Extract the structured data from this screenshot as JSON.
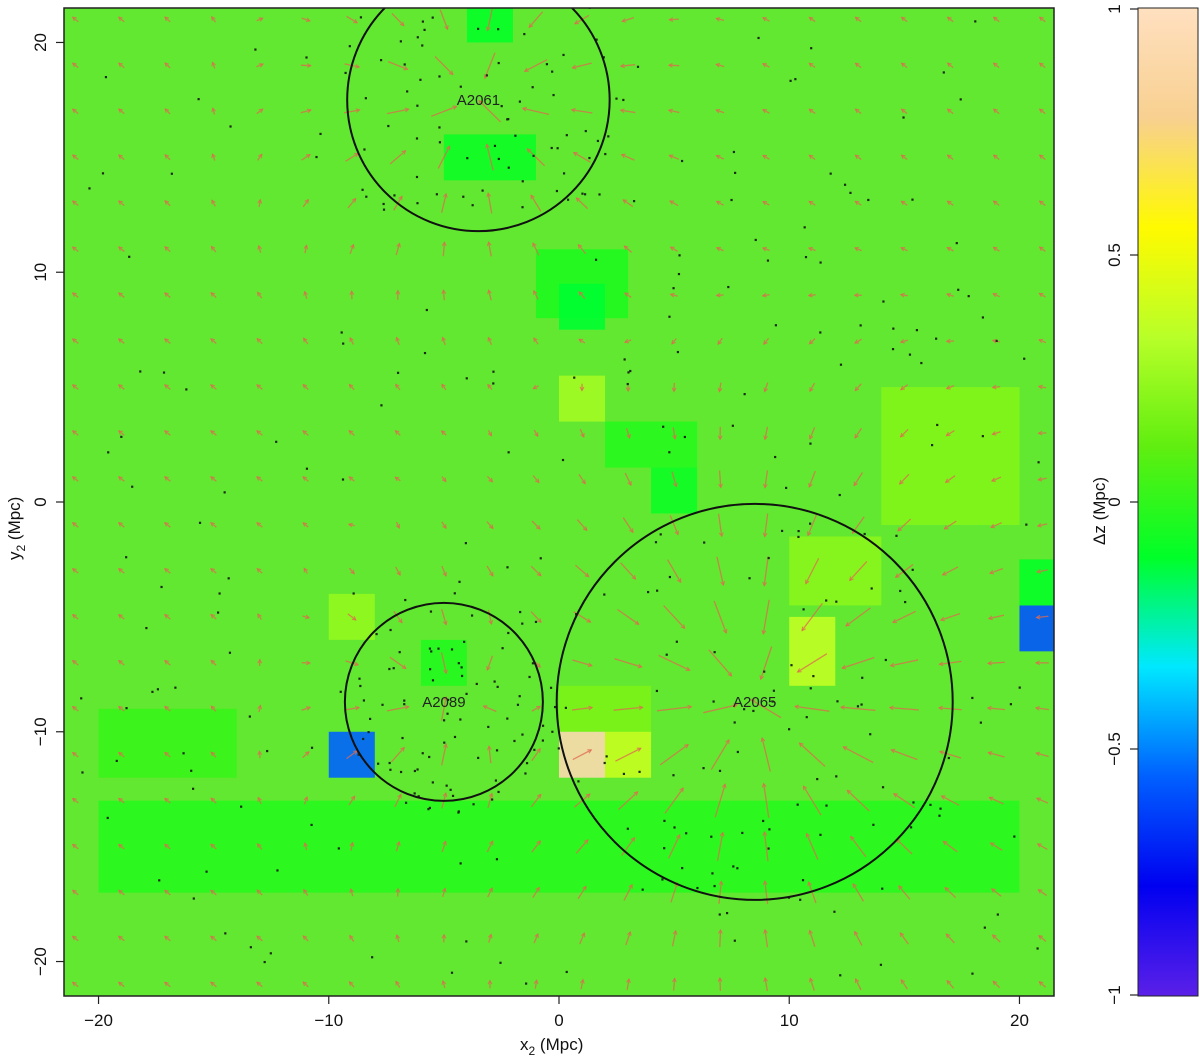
{
  "chart_data": {
    "type": "heatmap",
    "xlabel_main": "x",
    "xlabel_sub": "2",
    "xlabel_unit": " (Mpc)",
    "ylabel_main": "y",
    "ylabel_sub": "2",
    "ylabel_unit": " (Mpc)",
    "xlim": [
      -21.5,
      21.5
    ],
    "ylim": [
      -21.5,
      21.5
    ],
    "x_ticks": [
      -20,
      -10,
      0,
      10,
      20
    ],
    "x_tick_labels": [
      "−20",
      "−10",
      "0",
      "10",
      "20"
    ],
    "y_ticks": [
      -20,
      -10,
      0,
      10,
      20
    ],
    "y_tick_labels": [
      "−20",
      "−10",
      "0",
      "10",
      "20"
    ],
    "colorbar": {
      "label": "Δz (Mpc)",
      "range": [
        -1,
        1
      ],
      "ticks": [
        -1,
        -0.5,
        0,
        0.5,
        1
      ],
      "tick_labels": [
        "−1",
        "−0.5",
        "0",
        "0.5",
        "1"
      ],
      "colors": [
        "#5b20e8",
        "#0000f0",
        "#0060ff",
        "#00e8ff",
        "#00ff28",
        "#60ee10",
        "#b8ff28",
        "#fffa00",
        "#f8d090",
        "#ffe0c0"
      ]
    },
    "background_color": "#62e830",
    "cell_size_mpc": 2,
    "patches": [
      {
        "x": -4,
        "y": 20,
        "w": 2,
        "h": 2,
        "dz": -0.1
      },
      {
        "x": -5,
        "y": 14,
        "w": 4,
        "h": 2,
        "dz": -0.08
      },
      {
        "x": -1,
        "y": 8,
        "w": 4,
        "h": 3,
        "dz": -0.04
      },
      {
        "x": 0,
        "y": 7.5,
        "w": 2,
        "h": 2,
        "dz": -0.12
      },
      {
        "x": 0,
        "y": 3.5,
        "w": 2,
        "h": 2,
        "dz": 0.28
      },
      {
        "x": 2,
        "y": 1.5,
        "w": 4,
        "h": 2,
        "dz": -0.02
      },
      {
        "x": 4,
        "y": -0.5,
        "w": 2,
        "h": 2,
        "dz": -0.08
      },
      {
        "x": 10,
        "y": -4.5,
        "w": 4,
        "h": 3,
        "dz": 0.22
      },
      {
        "x": 10,
        "y": -8,
        "w": 2,
        "h": 3,
        "dz": 0.36
      },
      {
        "x": 20,
        "y": -6.5,
        "w": 2,
        "h": 2,
        "dz": -0.58
      },
      {
        "x": 20,
        "y": -4.5,
        "w": 2,
        "h": 2,
        "dz": -0.1
      },
      {
        "x": -10,
        "y": -6,
        "w": 2,
        "h": 2,
        "dz": 0.24
      },
      {
        "x": -10,
        "y": -12,
        "w": 2,
        "h": 2,
        "dz": -0.55
      },
      {
        "x": -6,
        "y": -8,
        "w": 2,
        "h": 2,
        "dz": -0.03
      },
      {
        "x": 0,
        "y": -12,
        "w": 2,
        "h": 2,
        "dz": 0.92
      },
      {
        "x": 2,
        "y": -12,
        "w": 2,
        "h": 2,
        "dz": 0.38
      },
      {
        "x": 0,
        "y": -10,
        "w": 4,
        "h": 2,
        "dz": 0.18
      },
      {
        "x": -20,
        "y": -12,
        "w": 6,
        "h": 3,
        "dz": 0.02
      },
      {
        "x": -20,
        "y": -17,
        "w": 40,
        "h": 4,
        "dz": -0.02
      },
      {
        "x": 14,
        "y": -1,
        "w": 6,
        "h": 6,
        "dz": 0.2
      }
    ],
    "clusters": [
      {
        "name": "A2061",
        "x": -3.5,
        "y": 17.5,
        "r": 5.7
      },
      {
        "name": "A2089",
        "x": -5,
        "y": -8.7,
        "r": 4.3
      },
      {
        "name": "A2065",
        "x": 8.5,
        "y": -8.7,
        "r": 8.6
      }
    ],
    "arrow_grid_spacing_mpc": 2,
    "arrow_color": "#e06a50"
  }
}
